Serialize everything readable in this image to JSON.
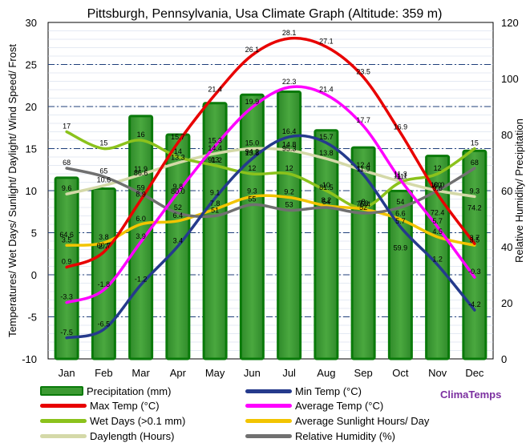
{
  "chart_data": {
    "type": "bar+line",
    "title": "Pittsburgh, Pennsylvania, Usa Climate Graph (Altitude: 359 m)",
    "ylabel_left": "Temperatures/ Wet Days/ Sunlight/ Daylight/ Wind Speed/ Frost",
    "ylabel_right": "Relative Humidity/ Precipitation",
    "ylim_left": [
      -10,
      30
    ],
    "ylim_right": [
      0,
      120
    ],
    "yticks_left": [
      "-10",
      "-5",
      "0",
      "5",
      "10",
      "15",
      "20",
      "25",
      "30"
    ],
    "yticks_right": [
      "0",
      "20",
      "40",
      "60",
      "80",
      "100",
      "120"
    ],
    "categories": [
      "Jan",
      "Feb",
      "Mar",
      "Apr",
      "May",
      "Jun",
      "Jul",
      "Aug",
      "Sep",
      "Oct",
      "Nov",
      "Dec"
    ],
    "series": [
      {
        "name": "Precipitation (mm)",
        "axis": "right",
        "type": "bar",
        "color": "#3c9a32",
        "values": [
          64.6,
          60.7,
          86.6,
          80.0,
          91.2,
          94.2,
          95.3,
          81.5,
          75.4,
          59.9,
          72.4,
          74.2
        ],
        "labels": [
          "64.6",
          "60.7",
          "86.6",
          "80.0",
          "91.2",
          "94.2",
          "95.3",
          "81.5",
          "75.4",
          "59.9",
          "72.4",
          "74.2"
        ]
      },
      {
        "name": "Min Temp (°C)",
        "axis": "left",
        "type": "line",
        "color": "#253a8c",
        "values": [
          -7.5,
          -6.5,
          -1.2,
          3.4,
          9.1,
          13.8,
          16.4,
          15.7,
          11.9,
          5.7,
          1.2,
          -4.2
        ],
        "labels": [
          "-7.5",
          "-6.5",
          "-1.2",
          "3.4",
          "9.1",
          "13.8",
          "16.4",
          "15.7",
          "11.9",
          "5.7",
          "1.2",
          "-4.2"
        ]
      },
      {
        "name": "Max Temp (°C)",
        "axis": "left",
        "type": "line",
        "color": "#e80000",
        "values": [
          0.9,
          2.7,
          8.9,
          15.7,
          21.4,
          26.1,
          28.1,
          27.1,
          23.5,
          16.9,
          9.6,
          3.7
        ],
        "labels": [
          "0.9",
          "2.7",
          "8.9",
          "15.7",
          "21.4",
          "26.1",
          "28.1",
          "27.1",
          "23.5",
          "16.9",
          "9.6",
          "3.7"
        ]
      },
      {
        "name": "Average Temp (°C)",
        "axis": "left",
        "type": "line",
        "color": "#ff00ff",
        "values": [
          -3.3,
          -1.8,
          3.9,
          9.8,
          15.3,
          19.9,
          22.3,
          21.4,
          17.7,
          11.3,
          5.7,
          -0.3
        ],
        "labels": [
          "-3.3",
          "-1.8",
          "3.9",
          "9.8",
          "15.3",
          "19.9",
          "22.3",
          "21.4",
          "17.7",
          "11.3",
          "5.7",
          "-0.3"
        ]
      },
      {
        "name": "Wet Days (>0.1 mm)",
        "axis": "left",
        "type": "line",
        "color": "#8bc21c",
        "values": [
          17,
          15,
          16,
          14,
          13,
          12,
          12,
          10,
          8,
          11,
          12,
          15
        ],
        "labels": [
          "17",
          "15",
          "16",
          "14",
          "13",
          "12",
          "12",
          "10",
          "8",
          "11",
          "12",
          "15"
        ]
      },
      {
        "name": "Average Sunlight Hours/ Day",
        "axis": "left",
        "type": "line",
        "color": "#f2c400",
        "values": [
          3.5,
          3.8,
          6.0,
          6.4,
          7.8,
          9.3,
          9.2,
          8.2,
          7.8,
          6.6,
          4.5,
          3.5
        ],
        "labels": [
          "3.5",
          "3.8",
          "6.0",
          "6.4",
          "7.8",
          "9.3",
          "9.2",
          "8.2",
          "7.8",
          "6.6",
          "4.5",
          "3.5"
        ]
      },
      {
        "name": "Daylength (Hours)",
        "axis": "left",
        "type": "line",
        "color": "#d4d9a8",
        "values": [
          9.6,
          10.6,
          11.9,
          13.3,
          14.4,
          15.0,
          14.8,
          13.8,
          12.4,
          11.1,
          10.0,
          9.3
        ],
        "labels": [
          "9.6",
          "10.6",
          "11.9",
          "13.3",
          "14.4",
          "15.0",
          "14.8",
          "13.8",
          "12.4",
          "11.1",
          "10.0",
          "9.3"
        ]
      },
      {
        "name": "Relative Humidity (%)",
        "axis": "right",
        "type": "line",
        "color": "#707070",
        "values": [
          68,
          65,
          59,
          52,
          51,
          55,
          53,
          54,
          52,
          54,
          60,
          68
        ],
        "labels": [
          "68",
          "65",
          "59",
          "52",
          "51",
          "55",
          "53",
          "54",
          "52",
          "54",
          "60",
          "68"
        ]
      }
    ]
  },
  "brand": "ClimaTemps"
}
